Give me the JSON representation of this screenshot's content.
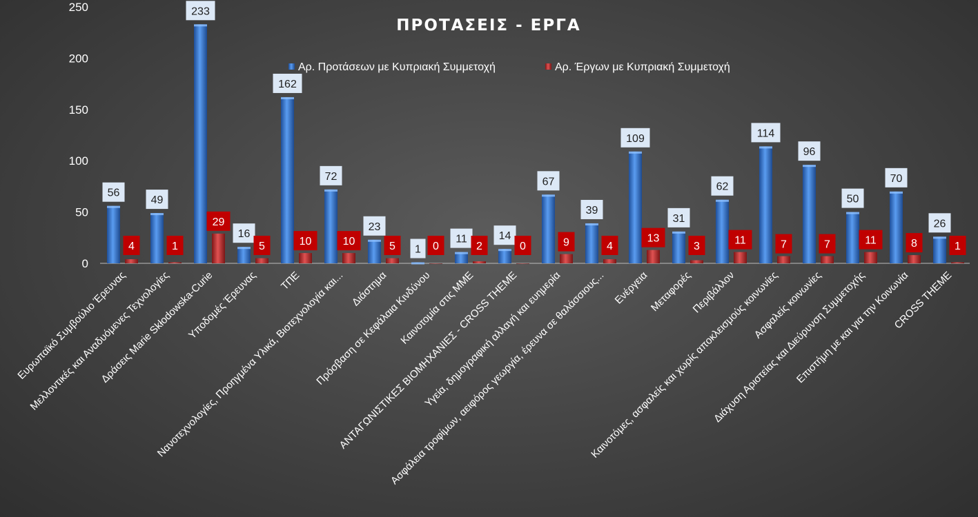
{
  "chart_data": {
    "type": "bar",
    "title": "ΠΡΟΤΑΣΕΙΣ - ΕΡΓΑ",
    "xlabel": "",
    "ylabel": "",
    "ylim": [
      0,
      250
    ],
    "yticks": [
      0,
      50,
      100,
      150,
      200,
      250
    ],
    "grid": false,
    "legend_position": "top",
    "categories": [
      "Ευρωπαϊκό Συμβούλιο Έρευνας",
      "Μελλοντικές και Αναδυόμενες Τεχνολογίες",
      "Δράσεις Marie Skłodowska-Curie",
      "Υποδομές Έρευνας",
      "ΤΠΕ",
      "Νανοτεχνολογίες,  Προηγμένα Υλικά, Βιοτεχνολογία και...",
      "Διάστημα",
      "Πρόσβαση σε Κεφάλαια Κινδύνου",
      "Καινοτομία στις ΜΜΕ",
      "ΑΝΤΑΓΩΝΙΣΤΙΚΕΣ ΒΙΟΜΗΧΑΝΙΕΣ - CROSS THEME",
      "Υγεία, δημογραφική αλλαγή και ευημερία",
      "Ασφάλεια τροφίμων, αειφόρος γεωργία, έρευνα σε θαλάσσιους...",
      "Ενέργεια",
      "Μεταφορές",
      "Περιβάλλον",
      "Καινοτόμες, ασφαλείς και χωρίς αποκλεισμούς κοινωνίες",
      "Ασφαλείς κοινωνίες",
      "Διάχυση Αριστείας και Διεύρυνση Συμμετοχής",
      "Επιστήμη με και για την Κοινωνία",
      "CROSS THEME"
    ],
    "series": [
      {
        "name": "Αρ. Προτάσεων  με Κυπριακή Συμμετοχή",
        "color": "#3d7fd6",
        "values": [
          56,
          49,
          233,
          16,
          162,
          72,
          23,
          1,
          11,
          14,
          67,
          39,
          109,
          31,
          62,
          114,
          96,
          50,
          70,
          26
        ]
      },
      {
        "name": "Αρ. Έργων με Κυπριακή Συμμετοχή",
        "color": "#c83a3a",
        "values": [
          4,
          1,
          29,
          5,
          10,
          10,
          5,
          0,
          2,
          0,
          9,
          4,
          13,
          3,
          11,
          7,
          7,
          11,
          8,
          1
        ]
      }
    ]
  }
}
